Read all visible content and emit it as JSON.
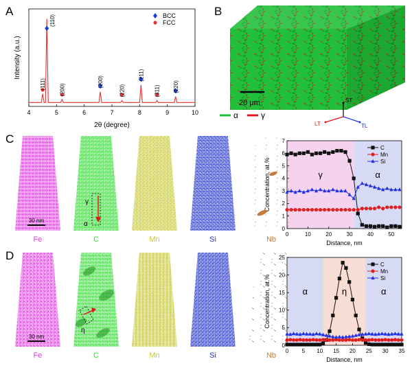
{
  "panel_labels": [
    "A",
    "B",
    "C",
    "D"
  ],
  "chart_data": [
    {
      "type": "line",
      "xlabel": "2θ (degree)",
      "ylabel": "Intensity (a.u.)",
      "xlim": [
        4,
        10
      ],
      "xticks": [
        4,
        5,
        6,
        7,
        8,
        9,
        10
      ],
      "ylim": [
        0,
        100
      ],
      "legend": "upper right",
      "series": [
        {
          "color": "#e83030",
          "x": [
            4.0,
            4.45,
            4.5,
            4.55,
            4.6,
            4.65,
            4.7,
            5.15,
            5.2,
            5.25,
            6.53,
            6.58,
            6.63,
            7.31,
            7.36,
            7.41,
            8.0,
            8.05,
            8.1,
            8.58,
            8.63,
            8.68,
            9.25,
            9.3,
            9.35,
            10.0
          ],
          "values": [
            4,
            4,
            13,
            4,
            4,
            90,
            4,
            4,
            7,
            4,
            4,
            15,
            4,
            4,
            6,
            4,
            4,
            22,
            4,
            4,
            6,
            4,
            4,
            10,
            4,
            4
          ]
        },
        {
          "name": "BCC",
          "color": "#1a3cdd",
          "marker": "diamond",
          "x": [
            4.65,
            6.58,
            8.05,
            9.3
          ],
          "values": [
            80,
            21,
            28,
            16
          ]
        },
        {
          "name": "FCC",
          "color": "#e83030",
          "marker": "circle",
          "x": [
            4.5,
            5.2,
            7.36,
            8.63
          ],
          "values": [
            17,
            12,
            12,
            12
          ]
        }
      ],
      "annotations": [
        "(111)",
        "(110)",
        "(200)",
        "(200)",
        "(220)",
        "(211)",
        "(311)",
        "(220)"
      ]
    },
    {
      "type": "line",
      "xlabel": "Distance, nm",
      "ylabel": "Concentration, at.%",
      "xlim": [
        0,
        55
      ],
      "xticks": [
        0,
        10,
        20,
        30,
        40,
        50
      ],
      "ylim": [
        0,
        7
      ],
      "yticks": [
        0,
        1,
        2,
        3,
        4,
        5,
        6,
        7
      ],
      "legend": "upper right",
      "regions": [
        {
          "label": "γ",
          "range": [
            0,
            32
          ],
          "color": "#f2c4ea"
        },
        {
          "label": "α",
          "range": [
            32,
            55
          ],
          "color": "#c9cdf2"
        }
      ],
      "x": [
        0,
        2,
        4,
        6,
        8,
        10,
        12,
        14,
        16,
        18,
        20,
        22,
        24,
        26,
        28,
        30,
        32,
        34,
        36,
        38,
        40,
        42,
        44,
        46,
        48,
        50,
        52,
        54
      ],
      "series": [
        {
          "name": "C",
          "color": "#111111",
          "marker": "square",
          "values": [
            5.9,
            6.0,
            5.9,
            6.0,
            6.0,
            6.1,
            5.9,
            6.0,
            6.0,
            6.1,
            6.0,
            6.1,
            6.2,
            6.2,
            6.1,
            5.4,
            4.0,
            1.2,
            0.3,
            0.2,
            0.2,
            0.15,
            0.2,
            0.2,
            0.1,
            0.2,
            0.2,
            0.15
          ]
        },
        {
          "name": "Mn",
          "color": "#e02020",
          "marker": "circle",
          "values": [
            1.5,
            1.5,
            1.5,
            1.5,
            1.5,
            1.5,
            1.5,
            1.5,
            1.5,
            1.5,
            1.5,
            1.5,
            1.5,
            1.5,
            1.5,
            1.5,
            1.5,
            1.5,
            1.6,
            1.6,
            1.6,
            1.6,
            1.7,
            1.6,
            1.7,
            1.7,
            1.7,
            1.7
          ]
        },
        {
          "name": "Si",
          "color": "#2030e0",
          "marker": "triangle",
          "values": [
            2.9,
            3.0,
            2.9,
            3.0,
            2.9,
            3.0,
            3.1,
            3.0,
            3.1,
            3.0,
            3.0,
            3.1,
            3.0,
            3.0,
            3.0,
            2.7,
            2.4,
            3.3,
            3.6,
            3.5,
            3.4,
            3.3,
            3.2,
            3.1,
            3.2,
            3.1,
            3.1,
            3.1
          ]
        }
      ]
    },
    {
      "type": "line",
      "xlabel": "Distance, nm",
      "ylabel": "Concentration, at.%",
      "xlim": [
        0,
        35
      ],
      "xticks": [
        0,
        5,
        10,
        15,
        20,
        25,
        30,
        35
      ],
      "ylim": [
        0,
        25
      ],
      "yticks": [
        0,
        5,
        10,
        15,
        20,
        25
      ],
      "legend": "upper right",
      "regions": [
        {
          "label": "α",
          "range": [
            0,
            11
          ],
          "color": "#c9cdf2"
        },
        {
          "label": "η",
          "range": [
            11,
            24
          ],
          "color": "#f4d2c6"
        },
        {
          "label": "α",
          "range": [
            24,
            35
          ],
          "color": "#c9cdf2"
        }
      ],
      "x": [
        0,
        1,
        2,
        3,
        4,
        5,
        6,
        7,
        8,
        9,
        10,
        11,
        12,
        13,
        14,
        15,
        16,
        17,
        18,
        19,
        20,
        21,
        22,
        23,
        24,
        25,
        26,
        27,
        28,
        29,
        30,
        31,
        32,
        33,
        34,
        35
      ],
      "series": [
        {
          "name": "C",
          "color": "#111111",
          "marker": "square",
          "values": [
            0.2,
            0.2,
            0.2,
            0.2,
            0.2,
            0.2,
            0.2,
            0.2,
            0.2,
            0.2,
            0.2,
            0.6,
            1.5,
            4,
            8.5,
            13.5,
            19,
            23.5,
            22,
            18,
            13,
            8.5,
            4.5,
            2,
            0.7,
            0.3,
            0.2,
            0.2,
            0.2,
            0.2,
            0.2,
            0.2,
            0.2,
            0.2,
            0.2,
            0.2
          ]
        },
        {
          "name": "Mn",
          "color": "#e02020",
          "marker": "circle",
          "values": [
            1.5,
            1.6,
            1.5,
            1.5,
            1.6,
            1.5,
            1.5,
            1.5,
            1.6,
            1.5,
            1.5,
            1.6,
            1.5,
            1.5,
            1.5,
            1.6,
            1.5,
            1.5,
            1.5,
            1.6,
            1.5,
            1.5,
            1.6,
            1.5,
            1.5,
            1.5,
            1.6,
            1.5,
            1.5,
            1.5,
            1.6,
            1.5,
            1.5,
            1.6,
            1.5,
            1.5
          ]
        },
        {
          "name": "Si",
          "color": "#2030e0",
          "marker": "triangle",
          "values": [
            3.2,
            3.1,
            3.3,
            3.2,
            3.1,
            3.3,
            3.2,
            3.2,
            3.1,
            3.3,
            3.2,
            3.0,
            2.8,
            2.6,
            2.4,
            2.3,
            2.4,
            2.3,
            2.4,
            2.5,
            2.6,
            2.8,
            3.0,
            3.1,
            3.2,
            3.3,
            3.2,
            3.1,
            3.2,
            3.3,
            3.2,
            3.1,
            3.2,
            3.3,
            3.2,
            3.2
          ]
        }
      ]
    }
  ],
  "micrograph": {
    "scale_bar": "20 μm",
    "legend": [
      {
        "name": "α",
        "color": "#22c03a"
      },
      {
        "name": "γ",
        "color": "#e01818"
      }
    ],
    "axes": [
      "ST",
      "LT",
      "TL"
    ]
  },
  "apt_rows": [
    {
      "scale_bar": "30 nm",
      "annotations": [
        "γ",
        "α"
      ],
      "elements": [
        {
          "name": "Fe",
          "color": "#e23ee2"
        },
        {
          "name": "C",
          "color": "#33dd33"
        },
        {
          "name": "Mn",
          "color": "#c8c830"
        },
        {
          "name": "Si",
          "color": "#2233cc"
        },
        {
          "name": "Nb",
          "color": "#c87a3c"
        }
      ]
    },
    {
      "scale_bar": "30 nm",
      "annotations": [
        "η"
      ],
      "elements": [
        {
          "name": "Fe",
          "color": "#e23ee2"
        },
        {
          "name": "C",
          "color": "#33dd33"
        },
        {
          "name": "Mn",
          "color": "#c8c830"
        },
        {
          "name": "Si",
          "color": "#2233cc"
        },
        {
          "name": "Nb",
          "color": "#c87a3c"
        }
      ]
    }
  ]
}
